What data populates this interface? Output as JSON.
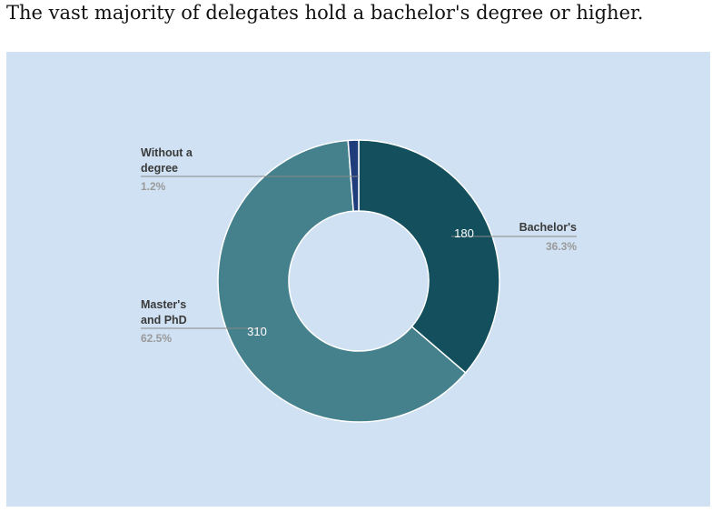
{
  "title": "The vast majority of delegates hold a bachelor's degree or higher.",
  "colors": {
    "panel_background": "#cfe1f2",
    "bachelors": "#134f5c",
    "masters_phd": "#45808d",
    "without_degree": "#1f3d7a",
    "leader_line": "#888888"
  },
  "chart_data": {
    "type": "pie",
    "style": "donut",
    "slices": [
      {
        "label_lines": [
          "Bachelor's"
        ],
        "value": 180,
        "percent_label": "36.3%",
        "value_label": "180",
        "color": "#134f5c",
        "label_side": "right"
      },
      {
        "label_lines": [
          "Master's",
          "and PhD"
        ],
        "value": 310,
        "percent_label": "62.5%",
        "value_label": "310",
        "color": "#45808d",
        "label_side": "left"
      },
      {
        "label_lines": [
          "Without a",
          "degree"
        ],
        "value": 6,
        "percent_label": "1.2%",
        "value_label": "",
        "color": "#1f3d7a",
        "label_side": "left"
      }
    ]
  }
}
